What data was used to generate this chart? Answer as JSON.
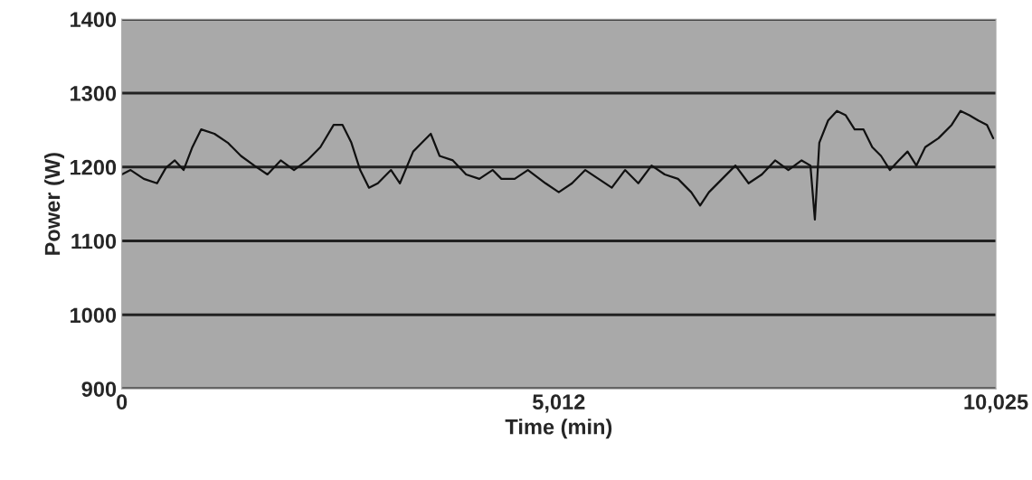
{
  "chart_data": {
    "type": "line",
    "xlabel": "Time (min)",
    "ylabel": "Power (W)",
    "x": [
      0,
      101,
      253,
      405,
      506,
      608,
      709,
      810,
      911,
      1063,
      1215,
      1367,
      1519,
      1671,
      1823,
      1975,
      2127,
      2278,
      2430,
      2532,
      2633,
      2734,
      2835,
      2937,
      3088,
      3190,
      3342,
      3443,
      3544,
      3645,
      3797,
      3949,
      4101,
      4253,
      4354,
      4506,
      4658,
      4860,
      5012,
      5164,
      5316,
      5468,
      5620,
      5772,
      5924,
      6076,
      6227,
      6379,
      6531,
      6633,
      6734,
      6886,
      7038,
      7189,
      7341,
      7493,
      7645,
      7797,
      7898,
      7949,
      8000,
      8101,
      8202,
      8303,
      8405,
      8506,
      8607,
      8708,
      8810,
      8911,
      9012,
      9113,
      9215,
      9367,
      9518,
      9620,
      9721,
      9822,
      9923,
      9994
    ],
    "series": [
      {
        "color": "#111111",
        "values": [
          1190,
          1196,
          1184,
          1178,
          1199,
          1209,
          1196,
          1227,
          1251,
          1245,
          1233,
          1215,
          1202,
          1190,
          1209,
          1196,
          1209,
          1227,
          1257,
          1257,
          1233,
          1196,
          1172,
          1178,
          1196,
          1178,
          1221,
          1233,
          1245,
          1215,
          1209,
          1190,
          1184,
          1196,
          1184,
          1184,
          1196,
          1178,
          1166,
          1178,
          1196,
          1184,
          1172,
          1196,
          1178,
          1202,
          1190,
          1184,
          1166,
          1148,
          1166,
          1184,
          1202,
          1178,
          1190,
          1209,
          1196,
          1209,
          1202,
          1129,
          1233,
          1263,
          1276,
          1270,
          1251,
          1251,
          1227,
          1215,
          1196,
          1209,
          1221,
          1202,
          1227,
          1239,
          1257,
          1276,
          1270,
          1263,
          1257,
          1239
        ]
      }
    ],
    "xlim": [
      0,
      10025
    ],
    "xticks": [
      0,
      {
        "value": 5012,
        "label": "5,012"
      },
      {
        "value": 10025,
        "label": "10,025"
      }
    ],
    "ylim": [
      900,
      1400
    ],
    "yticks": [
      900,
      1000,
      1100,
      1200,
      1300,
      1400
    ],
    "grid": "y",
    "legend": false,
    "marker": "none",
    "line_style": "solid"
  }
}
